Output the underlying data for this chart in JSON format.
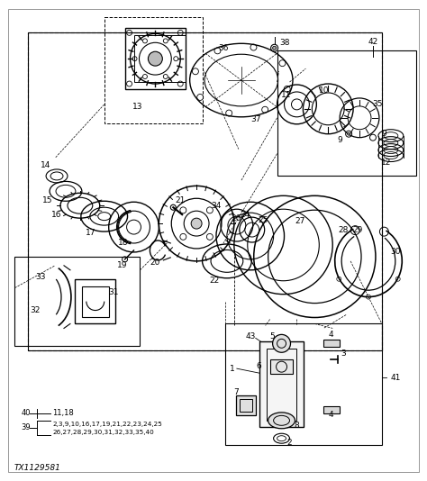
{
  "fig_width": 4.74,
  "fig_height": 5.34,
  "dpi": 100,
  "bg_color": "#ffffff",
  "line_color": "#000000",
  "watermark": "TX1129581",
  "fs": 6.5
}
